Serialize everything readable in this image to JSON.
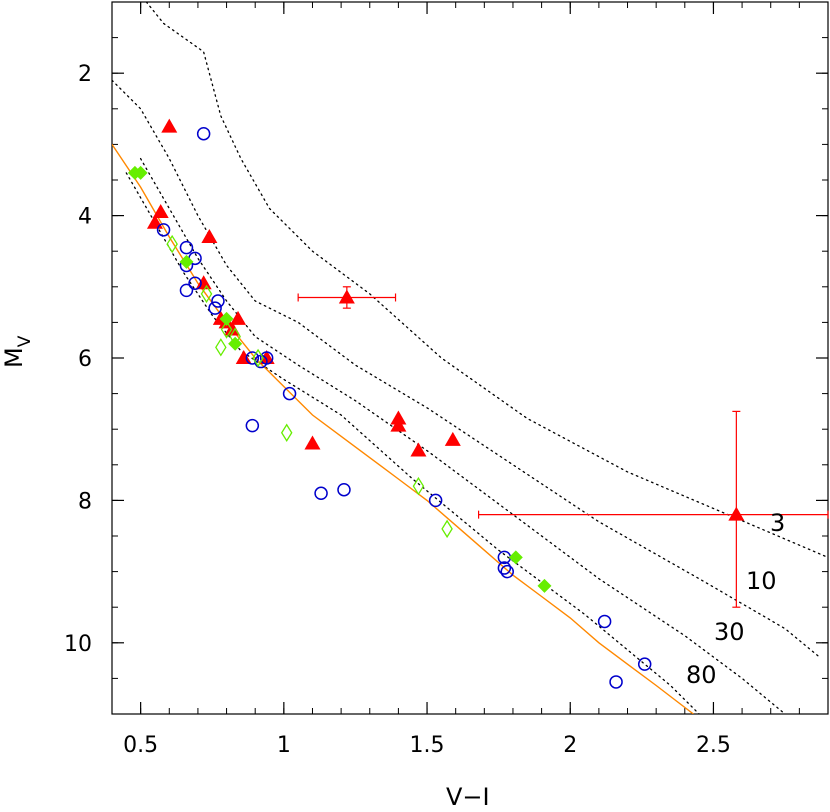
{
  "chart_data": {
    "type": "scatter",
    "title": "",
    "xlabel": "V−I",
    "ylabel": {
      "main": "M",
      "sub": "V"
    },
    "xlim": [
      0.4,
      2.9
    ],
    "ylim": [
      11.0,
      1.0
    ],
    "y_inverted": true,
    "xticks": [
      {
        "value": 0.5,
        "label": "0.5"
      },
      {
        "value": 1.0,
        "label": "1"
      },
      {
        "value": 1.5,
        "label": "1.5"
      },
      {
        "value": 2.0,
        "label": "2"
      },
      {
        "value": 2.5,
        "label": "2.5"
      }
    ],
    "yticks": [
      {
        "value": 2,
        "label": "2"
      },
      {
        "value": 4,
        "label": "4"
      },
      {
        "value": 6,
        "label": "6"
      },
      {
        "value": 8,
        "label": "8"
      },
      {
        "value": 10,
        "label": "10"
      }
    ],
    "grid": false,
    "colors": {
      "triangles": "#ff0000",
      "circles": "#0000cc",
      "filled_diamonds": "#66ee00",
      "open_diamonds": "#66ee00",
      "main_sequence": "#ff8800",
      "isochrones": "#000000",
      "error_bars": "#ff0000"
    },
    "isochrone_labels": [
      "3",
      "10",
      "30",
      "80"
    ],
    "isochrones": [
      {
        "label": "3",
        "points": [
          [
            0.52,
            1.0
          ],
          [
            0.58,
            1.3
          ],
          [
            0.65,
            1.5
          ],
          [
            0.72,
            1.7
          ],
          [
            0.78,
            2.6
          ],
          [
            0.85,
            3.2
          ],
          [
            0.95,
            3.9
          ],
          [
            1.1,
            4.5
          ],
          [
            1.3,
            5.1
          ],
          [
            1.55,
            6.0
          ],
          [
            1.85,
            6.85
          ],
          [
            2.2,
            7.6
          ],
          [
            2.55,
            8.2
          ],
          [
            2.9,
            8.8
          ]
        ]
      },
      {
        "label": "10",
        "points": [
          [
            0.4,
            2.1
          ],
          [
            0.5,
            2.5
          ],
          [
            0.6,
            3.2
          ],
          [
            0.7,
            4.0
          ],
          [
            0.8,
            4.7
          ],
          [
            0.9,
            5.2
          ],
          [
            1.05,
            5.5
          ],
          [
            1.25,
            6.1
          ],
          [
            1.5,
            6.7
          ],
          [
            1.8,
            7.5
          ],
          [
            2.1,
            8.3
          ],
          [
            2.45,
            9.1
          ],
          [
            2.75,
            9.8
          ],
          [
            2.87,
            10.2
          ]
        ]
      },
      {
        "label": "30",
        "points": [
          [
            0.5,
            3.2
          ],
          [
            0.6,
            3.9
          ],
          [
            0.7,
            4.6
          ],
          [
            0.8,
            5.2
          ],
          [
            0.9,
            5.7
          ],
          [
            1.05,
            6.1
          ],
          [
            1.25,
            6.6
          ],
          [
            1.5,
            7.3
          ],
          [
            1.8,
            8.2
          ],
          [
            2.1,
            9.1
          ],
          [
            2.4,
            9.9
          ],
          [
            2.6,
            10.5
          ],
          [
            2.75,
            11.0
          ]
        ]
      },
      {
        "label": "80",
        "points": [
          [
            0.45,
            3.4
          ],
          [
            0.55,
            4.1
          ],
          [
            0.65,
            4.8
          ],
          [
            0.75,
            5.4
          ],
          [
            0.85,
            5.9
          ],
          [
            1.0,
            6.3
          ],
          [
            1.2,
            6.8
          ],
          [
            1.45,
            7.7
          ],
          [
            1.75,
            8.7
          ],
          [
            2.05,
            9.6
          ],
          [
            2.35,
            10.6
          ],
          [
            2.45,
            11.0
          ]
        ]
      }
    ],
    "main_sequence": [
      [
        0.4,
        3.0
      ],
      [
        0.5,
        3.6
      ],
      [
        0.6,
        4.3
      ],
      [
        0.7,
        4.95
      ],
      [
        0.8,
        5.5
      ],
      [
        0.9,
        6.0
      ],
      [
        1.0,
        6.4
      ],
      [
        1.1,
        6.8
      ],
      [
        1.2,
        7.1
      ],
      [
        1.3,
        7.4
      ],
      [
        1.4,
        7.7
      ],
      [
        1.5,
        8.0
      ],
      [
        1.6,
        8.35
      ],
      [
        1.7,
        8.7
      ],
      [
        1.8,
        9.05
      ],
      [
        1.9,
        9.35
      ],
      [
        2.0,
        9.65
      ],
      [
        2.1,
        10.0
      ],
      [
        2.2,
        10.3
      ],
      [
        2.3,
        10.6
      ],
      [
        2.43,
        11.0
      ]
    ],
    "series": [
      {
        "marker": "filled-triangle",
        "points": [
          [
            0.6,
            2.75
          ],
          [
            0.57,
            3.95
          ],
          [
            0.55,
            4.1
          ],
          [
            0.74,
            4.3
          ],
          [
            0.72,
            4.95
          ],
          [
            0.78,
            5.45
          ],
          [
            0.8,
            5.5
          ],
          [
            0.84,
            5.45
          ],
          [
            0.82,
            5.6
          ],
          [
            0.86,
            6.0
          ],
          [
            0.94,
            6.0
          ],
          [
            1.1,
            7.2
          ],
          [
            1.4,
            6.85
          ],
          [
            1.4,
            6.95
          ],
          [
            1.47,
            7.3
          ],
          [
            1.59,
            7.15
          ],
          [
            1.22,
            5.15
          ],
          [
            2.58,
            8.2
          ]
        ]
      },
      {
        "marker": "open-circle",
        "points": [
          [
            0.72,
            2.85
          ],
          [
            0.58,
            4.2
          ],
          [
            0.66,
            4.45
          ],
          [
            0.69,
            4.6
          ],
          [
            0.66,
            4.7
          ],
          [
            0.69,
            4.95
          ],
          [
            0.66,
            5.05
          ],
          [
            0.77,
            5.2
          ],
          [
            0.76,
            5.3
          ],
          [
            0.89,
            6.0
          ],
          [
            0.92,
            6.05
          ],
          [
            0.94,
            6.0
          ],
          [
            1.02,
            6.5
          ],
          [
            0.89,
            6.95
          ],
          [
            1.13,
            7.9
          ],
          [
            1.21,
            7.85
          ],
          [
            1.53,
            8.0
          ],
          [
            1.77,
            8.8
          ],
          [
            1.77,
            8.95
          ],
          [
            1.78,
            9.0
          ],
          [
            2.12,
            9.7
          ],
          [
            2.26,
            10.3
          ],
          [
            2.16,
            10.55
          ]
        ]
      },
      {
        "marker": "filled-diamond",
        "points": [
          [
            0.48,
            3.4
          ],
          [
            0.5,
            3.4
          ],
          [
            0.66,
            4.65
          ],
          [
            0.8,
            5.45
          ],
          [
            0.83,
            5.8
          ],
          [
            1.81,
            8.8
          ],
          [
            1.91,
            9.2
          ]
        ]
      },
      {
        "marker": "open-diamond",
        "points": [
          [
            0.61,
            4.4
          ],
          [
            0.73,
            5.1
          ],
          [
            0.8,
            5.6
          ],
          [
            0.78,
            5.85
          ],
          [
            0.83,
            5.7
          ],
          [
            0.91,
            6.0
          ],
          [
            1.01,
            7.05
          ],
          [
            1.47,
            7.8
          ],
          [
            1.57,
            8.4
          ]
        ]
      }
    ],
    "error_bars": [
      {
        "x": 1.22,
        "y": 5.15,
        "xerr": [
          0.17,
          0.17
        ],
        "yerr": [
          0.15,
          0.15
        ]
      },
      {
        "x": 2.58,
        "y": 8.2,
        "xerr": [
          0.9,
          0.32
        ],
        "yerr": [
          1.45,
          1.3
        ]
      }
    ]
  }
}
